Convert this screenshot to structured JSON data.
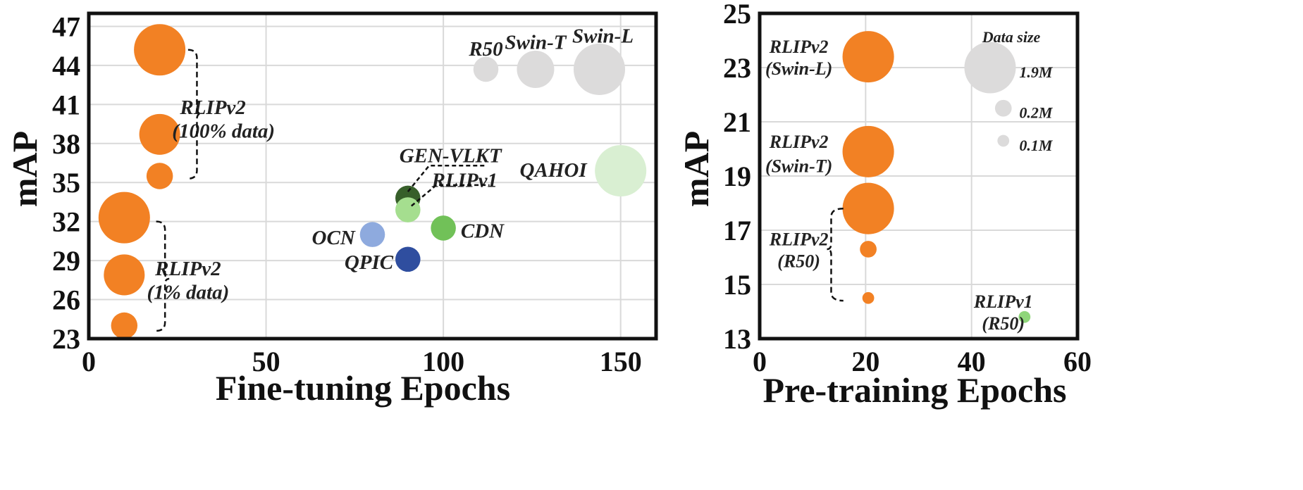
{
  "chart_data": [
    {
      "type": "scatter",
      "variant": "bubble",
      "xlabel": "Fine-tuning Epochs",
      "ylabel": "mAP",
      "xlim": [
        0,
        160
      ],
      "ylim": [
        23,
        48
      ],
      "xticks": [
        "0",
        "50",
        "100",
        "150"
      ],
      "xtick_values": [
        0,
        50,
        100,
        150
      ],
      "yticks": [
        "23",
        "26",
        "29",
        "32",
        "35",
        "38",
        "41",
        "44",
        "47"
      ],
      "ytick_values": [
        23,
        26,
        29,
        32,
        35,
        38,
        41,
        44,
        47
      ],
      "grid": true,
      "points": [
        {
          "name": "rlipv2-100-swin-l",
          "x": 20,
          "y": 45.2,
          "size": 1.9,
          "color": "#f28124"
        },
        {
          "name": "rlipv2-100-swin-t",
          "x": 20,
          "y": 38.7,
          "size": 1.2,
          "color": "#f28124"
        },
        {
          "name": "rlipv2-100-r50",
          "x": 20,
          "y": 35.5,
          "size": 0.5,
          "color": "#f28124"
        },
        {
          "name": "rlipv2-1-swin-l",
          "x": 10,
          "y": 32.3,
          "size": 1.9,
          "color": "#f28124"
        },
        {
          "name": "rlipv2-1-swin-t",
          "x": 10,
          "y": 27.9,
          "size": 1.2,
          "color": "#f28124"
        },
        {
          "name": "rlipv2-1-r50",
          "x": 10,
          "y": 24.0,
          "size": 0.5,
          "color": "#f28124"
        },
        {
          "name": "gen-vlkt",
          "x": 90,
          "y": 33.8,
          "size": 0.45,
          "color": "#375f2a"
        },
        {
          "name": "rlipv1",
          "x": 90,
          "y": 32.9,
          "size": 0.45,
          "color": "#a5de8f"
        },
        {
          "name": "ocn",
          "x": 80,
          "y": 31.0,
          "size": 0.45,
          "color": "#8eaade"
        },
        {
          "name": "qpic",
          "x": 90,
          "y": 29.1,
          "size": 0.45,
          "color": "#2f4e9f"
        },
        {
          "name": "cdn",
          "x": 100,
          "y": 31.5,
          "size": 0.45,
          "color": "#71c158"
        },
        {
          "name": "qahoi",
          "x": 150,
          "y": 35.9,
          "size": 1.9,
          "color": "#d9efd2"
        },
        {
          "name": "legend-r50",
          "x": 112,
          "y": 43.7,
          "size": 0.45,
          "color": "#dcdbdb"
        },
        {
          "name": "legend-swin-t",
          "x": 126,
          "y": 43.7,
          "size": 1.0,
          "color": "#dcdbdb"
        },
        {
          "name": "legend-swin-l",
          "x": 144,
          "y": 43.7,
          "size": 1.9,
          "color": "#dcdbdb"
        }
      ],
      "labels": [
        {
          "name": "label-r50",
          "text": "R50",
          "x": 112,
          "y": 45.3
        },
        {
          "name": "label-swin-t",
          "text": "Swin-T",
          "x": 126,
          "y": 45.8
        },
        {
          "name": "label-swin-l",
          "text": "Swin-L",
          "x": 145,
          "y": 46.3
        },
        {
          "name": "label-qahoi",
          "text": "QAHOI",
          "x": 131,
          "y": 36.0
        },
        {
          "name": "label-cdn",
          "text": "CDN",
          "x": 111,
          "y": 31.3
        },
        {
          "name": "label-ocn",
          "text": "OCN",
          "x": 69,
          "y": 30.8
        },
        {
          "name": "label-qpic",
          "text": "QPIC",
          "x": 79,
          "y": 28.9
        },
        {
          "name": "label-gen-vlkt",
          "text": "GEN-VLKT",
          "x": 102,
          "y": 37.1
        },
        {
          "name": "label-rlipv1",
          "text": "RLIPv1",
          "x": 106,
          "y": 35.2
        },
        {
          "name": "label-rlipv2-100-a",
          "text": "RLIPv2",
          "x": 35,
          "y": 40.8
        },
        {
          "name": "label-rlipv2-100-b",
          "text": "(100% data)",
          "x": 38,
          "y": 39.0
        },
        {
          "name": "label-rlipv2-1-a",
          "text": "RLIPv2",
          "x": 28,
          "y": 28.4
        },
        {
          "name": "label-rlipv2-1-b",
          "text": "(1% data)",
          "x": 28,
          "y": 26.6
        }
      ]
    },
    {
      "type": "scatter",
      "variant": "bubble",
      "xlabel": "Pre-training Epochs",
      "ylabel": "mAP",
      "xlim": [
        0,
        60
      ],
      "ylim": [
        13,
        25
      ],
      "xticks": [
        "0",
        "20",
        "40",
        "60"
      ],
      "xtick_values": [
        0,
        20,
        40,
        60
      ],
      "yticks": [
        "13",
        "15",
        "17",
        "19",
        "21",
        "23",
        "25"
      ],
      "ytick_values": [
        13,
        15,
        17,
        19,
        21,
        23,
        25
      ],
      "grid": true,
      "points": [
        {
          "name": "rlipv2-swin-l-1.9m",
          "x": 20.5,
          "y": 23.4,
          "size": 1.9,
          "color": "#f28124"
        },
        {
          "name": "rlipv2-swin-t-1.9m",
          "x": 20.5,
          "y": 19.9,
          "size": 1.9,
          "color": "#f28124"
        },
        {
          "name": "rlipv2-r50-1.9m",
          "x": 20.5,
          "y": 17.8,
          "size": 1.9,
          "color": "#f28124"
        },
        {
          "name": "rlipv2-r50-0.2m",
          "x": 20.5,
          "y": 16.3,
          "size": 0.2,
          "color": "#f28124"
        },
        {
          "name": "rlipv2-r50-0.1m",
          "x": 20.5,
          "y": 14.5,
          "size": 0.1,
          "color": "#f28124"
        },
        {
          "name": "rlipv1-r50",
          "x": 50,
          "y": 13.8,
          "size": 0.1,
          "color": "#8fd67a"
        },
        {
          "name": "legend-1.9m",
          "x": 43.5,
          "y": 23.0,
          "size": 1.9,
          "color": "#dcdbdb"
        },
        {
          "name": "legend-0.2m",
          "x": 46,
          "y": 21.5,
          "size": 0.2,
          "color": "#dcdbdb"
        },
        {
          "name": "legend-0.1m",
          "x": 46,
          "y": 20.3,
          "size": 0.1,
          "color": "#dcdbdb"
        }
      ],
      "labels": [
        {
          "name": "label-data-size",
          "text": "Data size",
          "x": 47.5,
          "y": 24.2
        },
        {
          "name": "label-1.9m",
          "text": "1.9M",
          "x": 49,
          "y": 22.9
        },
        {
          "name": "label-0.2m",
          "text": "0.2M",
          "x": 49,
          "y": 21.4
        },
        {
          "name": "label-0.1m",
          "text": "0.1M",
          "x": 49,
          "y": 20.2
        },
        {
          "name": "label-rlipv2-swin-l-a",
          "text": "RLIPv2",
          "x": 7.4,
          "y": 23.8
        },
        {
          "name": "label-rlipv2-swin-l-b",
          "text": "(Swin-L)",
          "x": 7.4,
          "y": 23.0
        },
        {
          "name": "label-rlipv2-swin-t-a",
          "text": "RLIPv2",
          "x": 7.4,
          "y": 20.3
        },
        {
          "name": "label-rlipv2-swin-t-b",
          "text": "(Swin-T)",
          "x": 7.4,
          "y": 19.4
        },
        {
          "name": "label-rlipv2-r50-a",
          "text": "RLIPv2",
          "x": 7.4,
          "y": 16.7
        },
        {
          "name": "label-rlipv2-r50-b",
          "text": "(R50)",
          "x": 7.4,
          "y": 15.9
        },
        {
          "name": "label-rlipv1-a",
          "text": "RLIPv1",
          "x": 46,
          "y": 14.4
        },
        {
          "name": "label-rlipv1-b",
          "text": "(R50)",
          "x": 46,
          "y": 13.6
        }
      ]
    }
  ]
}
